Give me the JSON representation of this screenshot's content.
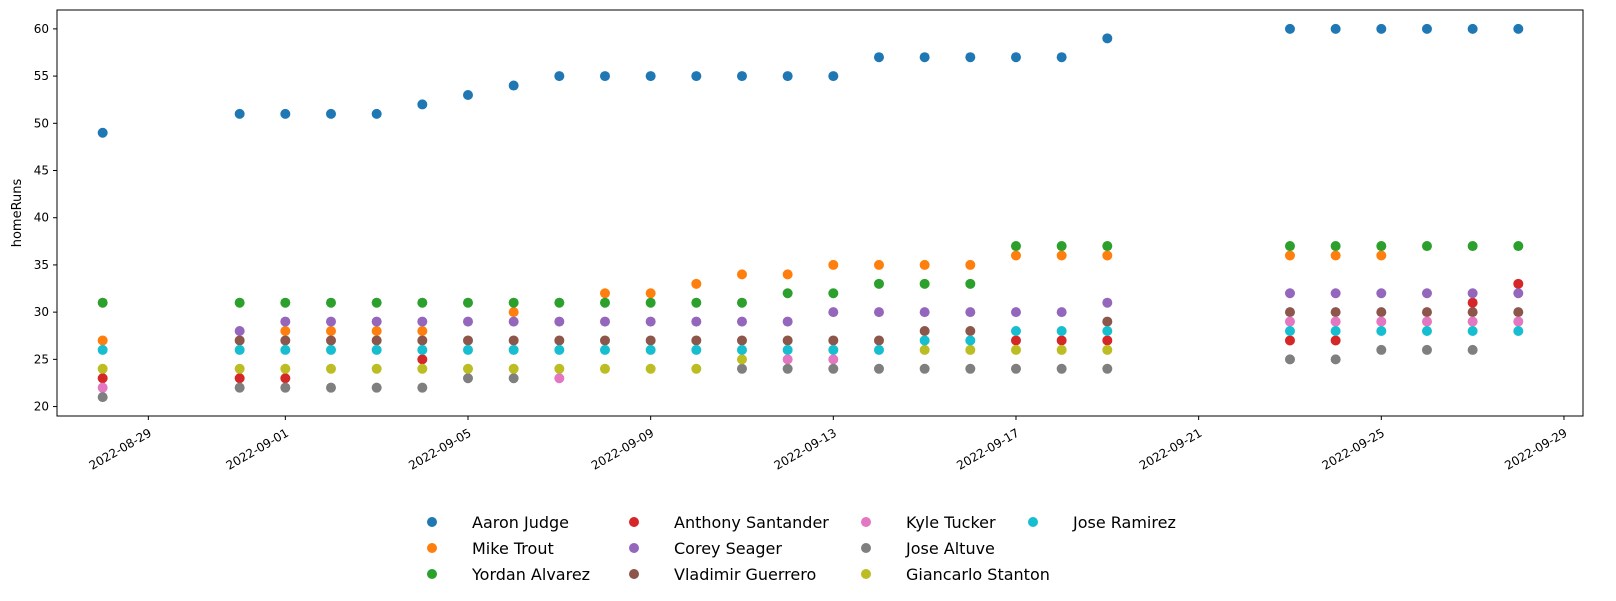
{
  "chart_data": {
    "type": "scatter",
    "title": "",
    "xlabel": "",
    "ylabel": "homeRuns",
    "ylim": [
      19,
      62
    ],
    "xlim": [
      "2022-08-27T00:00",
      "2022-09-29T10:00"
    ],
    "yticks": [
      20,
      25,
      30,
      35,
      40,
      45,
      50,
      55,
      60
    ],
    "xticks": [
      "2022-08-29",
      "2022-09-01",
      "2022-09-05",
      "2022-09-09",
      "2022-09-13",
      "2022-09-17",
      "2022-09-21",
      "2022-09-25",
      "2022-09-29"
    ],
    "grid": false,
    "legend_position": "bottom-center",
    "x": [
      "2022-08-28",
      "2022-08-31",
      "2022-09-01",
      "2022-09-02",
      "2022-09-03",
      "2022-09-04",
      "2022-09-05",
      "2022-09-06",
      "2022-09-07",
      "2022-09-08",
      "2022-09-09",
      "2022-09-10",
      "2022-09-11",
      "2022-09-12",
      "2022-09-13",
      "2022-09-14",
      "2022-09-15",
      "2022-09-16",
      "2022-09-17",
      "2022-09-18",
      "2022-09-19",
      "2022-09-23",
      "2022-09-24",
      "2022-09-25",
      "2022-09-26",
      "2022-09-27",
      "2022-09-28"
    ],
    "series": [
      {
        "name": "Aaron Judge",
        "color": "#1f77b4",
        "values": [
          49,
          51,
          51,
          51,
          51,
          52,
          53,
          54,
          55,
          55,
          55,
          55,
          55,
          55,
          55,
          57,
          57,
          57,
          57,
          57,
          59,
          60,
          60,
          60,
          60,
          60,
          60
        ]
      },
      {
        "name": "Mike Trout",
        "color": "#ff7f0e",
        "values": [
          27,
          null,
          28,
          28,
          28,
          28,
          null,
          30,
          null,
          32,
          32,
          33,
          34,
          34,
          35,
          35,
          35,
          35,
          36,
          36,
          36,
          36,
          36,
          36,
          null,
          null,
          null
        ]
      },
      {
        "name": "Yordan Alvarez",
        "color": "#2ca02c",
        "values": [
          31,
          31,
          31,
          31,
          31,
          31,
          31,
          31,
          31,
          31,
          31,
          31,
          31,
          32,
          32,
          33,
          33,
          33,
          37,
          37,
          37,
          37,
          37,
          37,
          37,
          37,
          37
        ]
      },
      {
        "name": "Anthony Santander",
        "color": "#d62728",
        "values": [
          23,
          23,
          23,
          null,
          null,
          25,
          null,
          null,
          null,
          null,
          null,
          null,
          null,
          null,
          null,
          null,
          null,
          null,
          27,
          27,
          27,
          27,
          27,
          null,
          null,
          31,
          33
        ]
      },
      {
        "name": "Corey Seager",
        "color": "#9467bd",
        "values": [
          null,
          28,
          29,
          29,
          29,
          29,
          29,
          29,
          29,
          29,
          29,
          29,
          29,
          29,
          30,
          30,
          30,
          30,
          30,
          30,
          31,
          32,
          32,
          32,
          32,
          32,
          32
        ]
      },
      {
        "name": "Vladimir Guerrero",
        "color": "#8c564b",
        "values": [
          null,
          27,
          27,
          27,
          27,
          27,
          27,
          27,
          27,
          27,
          27,
          27,
          27,
          27,
          27,
          27,
          28,
          28,
          null,
          null,
          29,
          30,
          30,
          30,
          30,
          30,
          30
        ]
      },
      {
        "name": "Kyle Tucker",
        "color": "#e377c2",
        "values": [
          22,
          null,
          null,
          null,
          null,
          null,
          null,
          null,
          23,
          null,
          null,
          null,
          null,
          25,
          25,
          null,
          null,
          null,
          null,
          null,
          null,
          29,
          29,
          29,
          29,
          29,
          29
        ]
      },
      {
        "name": "Jose Altuve",
        "color": "#7f7f7f",
        "values": [
          21,
          22,
          22,
          22,
          22,
          22,
          23,
          23,
          null,
          null,
          null,
          null,
          24,
          24,
          24,
          24,
          24,
          24,
          24,
          24,
          24,
          25,
          25,
          26,
          26,
          26,
          null
        ]
      },
      {
        "name": "Giancarlo Stanton",
        "color": "#bcbd22",
        "values": [
          24,
          24,
          24,
          24,
          24,
          24,
          24,
          24,
          24,
          24,
          24,
          24,
          25,
          null,
          null,
          null,
          26,
          26,
          26,
          26,
          26,
          null,
          null,
          null,
          null,
          null,
          null
        ]
      },
      {
        "name": "Jose Ramirez",
        "color": "#17becf",
        "values": [
          26,
          26,
          26,
          26,
          26,
          26,
          26,
          26,
          26,
          26,
          26,
          26,
          26,
          26,
          26,
          26,
          27,
          27,
          28,
          28,
          28,
          28,
          28,
          28,
          28,
          28,
          28
        ]
      }
    ]
  }
}
